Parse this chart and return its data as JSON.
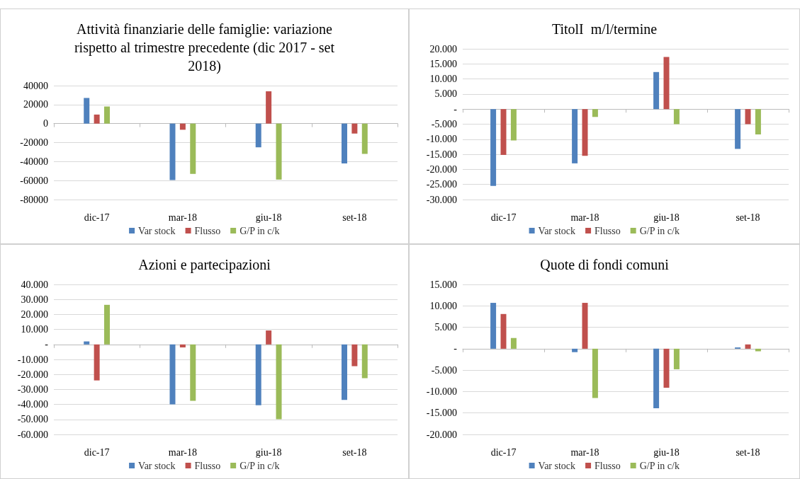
{
  "chart_data": [
    {
      "type": "bar",
      "title": "Attività finanziarie delle famiglie: variazione\nrispetto al trimestre precedente (dic 2017 - set\n2018)",
      "categories": [
        "dic-17",
        "mar-18",
        "giu-18",
        "set-18"
      ],
      "series": [
        {
          "name": "Var stock",
          "color": "#4f81bd",
          "values": [
            27000,
            -59500,
            -25000,
            -42000
          ]
        },
        {
          "name": "Flusso",
          "color": "#c0504d",
          "values": [
            9500,
            -6500,
            34000,
            -10500
          ]
        },
        {
          "name": "G/P in c/k",
          "color": "#9bbb59",
          "values": [
            18000,
            -53000,
            -59000,
            -32000
          ]
        }
      ],
      "ylim": [
        -80000,
        40000
      ],
      "yticks": [
        -80000,
        -60000,
        -40000,
        -20000,
        0,
        20000,
        40000
      ],
      "grid": "y",
      "legend": "bottom"
    },
    {
      "type": "bar",
      "title": "TitolI  m/l/termine",
      "categories": [
        "dic-17",
        "mar-18",
        "giu-18",
        "set-18"
      ],
      "series": [
        {
          "name": "Var stock",
          "color": "#4f81bd",
          "values": [
            -25500,
            -18000,
            12300,
            -13200
          ]
        },
        {
          "name": "Flusso",
          "color": "#c0504d",
          "values": [
            -15200,
            -15500,
            17300,
            -5000
          ]
        },
        {
          "name": "G/P in c/k",
          "color": "#9bbb59",
          "values": [
            -10400,
            -2600,
            -5000,
            -8400
          ]
        }
      ],
      "ylim": [
        -30000,
        20000
      ],
      "yticks": [
        {
          "value": -30000,
          "label": "-30.000"
        },
        {
          "value": -25000,
          "label": "-25.000"
        },
        {
          "value": -20000,
          "label": "-20.000"
        },
        {
          "value": -15000,
          "label": "-15.000"
        },
        {
          "value": -10000,
          "label": "-10.000"
        },
        {
          "value": -5000,
          "label": "-5.000"
        },
        {
          "value": 0,
          "label": "-"
        },
        {
          "value": 5000,
          "label": "5.000"
        },
        {
          "value": 10000,
          "label": "10.000"
        },
        {
          "value": 15000,
          "label": "15.000"
        },
        {
          "value": 20000,
          "label": "20.000"
        }
      ],
      "grid": "y",
      "legend": "bottom"
    },
    {
      "type": "bar",
      "title": "Azioni e partecipazioni",
      "categories": [
        "dic-17",
        "mar-18",
        "giu-18",
        "set-18"
      ],
      "series": [
        {
          "name": "Var stock",
          "color": "#4f81bd",
          "values": [
            2000,
            -40000,
            -40500,
            -37000
          ]
        },
        {
          "name": "Flusso",
          "color": "#c0504d",
          "values": [
            -24000,
            -2000,
            9300,
            -14500
          ]
        },
        {
          "name": "G/P in c/k",
          "color": "#9bbb59",
          "values": [
            26400,
            -37600,
            -49800,
            -22500
          ]
        }
      ],
      "ylim": [
        -60000,
        40000
      ],
      "yticks": [
        {
          "value": -60000,
          "label": "-60.000"
        },
        {
          "value": -50000,
          "label": "-50.000"
        },
        {
          "value": -40000,
          "label": "-40.000"
        },
        {
          "value": -30000,
          "label": "-30.000"
        },
        {
          "value": -20000,
          "label": "-20.000"
        },
        {
          "value": -10000,
          "label": "-10.000"
        },
        {
          "value": 0,
          "label": "-"
        },
        {
          "value": 10000,
          "label": "10.000"
        },
        {
          "value": 20000,
          "label": "20.000"
        },
        {
          "value": 30000,
          "label": "30.000"
        },
        {
          "value": 40000,
          "label": "40.000"
        }
      ],
      "grid": "y",
      "legend": "bottom"
    },
    {
      "type": "bar",
      "title": "Quote di fondi comuni",
      "categories": [
        "dic-17",
        "mar-18",
        "giu-18",
        "set-18"
      ],
      "series": [
        {
          "name": "Var stock",
          "color": "#4f81bd",
          "values": [
            10700,
            -800,
            -13900,
            300
          ]
        },
        {
          "name": "Flusso",
          "color": "#c0504d",
          "values": [
            8100,
            10700,
            -9100,
            1000
          ]
        },
        {
          "name": "G/P in c/k",
          "color": "#9bbb59",
          "values": [
            2500,
            -11500,
            -4800,
            -600
          ]
        }
      ],
      "ylim": [
        -20000,
        15000
      ],
      "yticks": [
        {
          "value": -20000,
          "label": "-20.000"
        },
        {
          "value": -15000,
          "label": "-15.000"
        },
        {
          "value": -10000,
          "label": "-10.000"
        },
        {
          "value": -5000,
          "label": "-5.000"
        },
        {
          "value": 0,
          "label": "-"
        },
        {
          "value": 5000,
          "label": "5.000"
        },
        {
          "value": 10000,
          "label": "10.000"
        },
        {
          "value": 15000,
          "label": "15.000"
        }
      ],
      "grid": "y",
      "legend": "bottom"
    }
  ]
}
